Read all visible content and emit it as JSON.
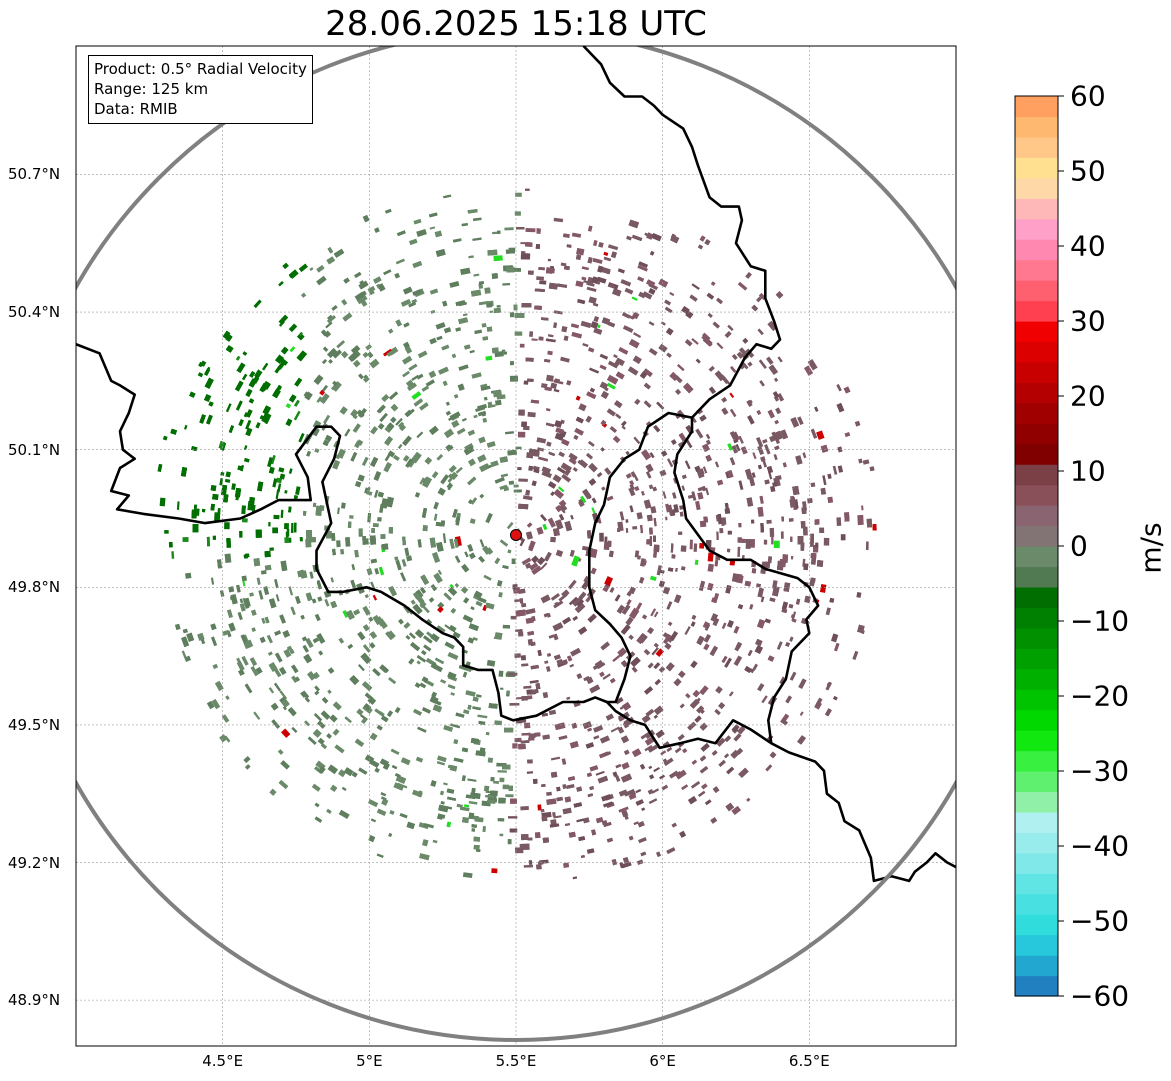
{
  "title": "28.06.2025 15:18 UTC",
  "info": {
    "product": "Product: 0.5° Radial Velocity",
    "range": "Range: 125 km",
    "source": "Data: RMIB"
  },
  "map": {
    "lon_range": [
      4.0,
      7.0
    ],
    "lat_range": [
      48.8,
      50.98
    ],
    "lat_ticks": [
      {
        "value": 50.7,
        "label": "50.7°N"
      },
      {
        "value": 50.4,
        "label": "50.4°N"
      },
      {
        "value": 50.1,
        "label": "50.1°N"
      },
      {
        "value": 49.8,
        "label": "49.8°N"
      },
      {
        "value": 49.5,
        "label": "49.5°N"
      },
      {
        "value": 49.2,
        "label": "49.2°N"
      },
      {
        "value": 48.9,
        "label": "48.9°N"
      }
    ],
    "lon_ticks": [
      {
        "value": 4.5,
        "label": "4.5°E"
      },
      {
        "value": 5.0,
        "label": "5°E"
      },
      {
        "value": 5.5,
        "label": "5.5°E"
      },
      {
        "value": 6.0,
        "label": "6°E"
      },
      {
        "value": 6.5,
        "label": "6.5°E"
      }
    ],
    "radar_site": {
      "lon": 5.5,
      "lat": 49.914
    },
    "range_ring_km": 125,
    "borders": [
      [
        [
          4.0,
          50.33
        ],
        [
          4.08,
          50.31
        ],
        [
          4.12,
          50.25
        ],
        [
          4.15,
          50.24
        ],
        [
          4.2,
          50.22
        ],
        [
          4.18,
          50.18
        ],
        [
          4.15,
          50.14
        ],
        [
          4.16,
          50.1
        ],
        [
          4.2,
          50.08
        ],
        [
          4.15,
          50.06
        ],
        [
          4.12,
          50.01
        ],
        [
          4.18,
          50.0
        ],
        [
          4.14,
          49.97
        ],
        [
          4.23,
          49.96
        ],
        [
          4.35,
          49.95
        ],
        [
          4.44,
          49.94
        ],
        [
          4.56,
          49.95
        ],
        [
          4.63,
          49.97
        ],
        [
          4.69,
          49.99
        ],
        [
          4.8,
          49.99
        ],
        [
          4.79,
          50.04
        ],
        [
          4.75,
          50.09
        ],
        [
          4.82,
          50.15
        ],
        [
          4.87,
          50.15
        ],
        [
          4.9,
          50.13
        ],
        [
          4.88,
          50.08
        ],
        [
          4.84,
          50.03
        ],
        [
          4.87,
          49.94
        ],
        [
          4.82,
          49.88
        ],
        [
          4.82,
          49.84
        ],
        [
          4.86,
          49.79
        ],
        [
          4.91,
          49.79
        ],
        [
          4.99,
          49.8
        ],
        [
          5.04,
          49.79
        ],
        [
          5.12,
          49.76
        ],
        [
          5.18,
          49.73
        ],
        [
          5.25,
          49.7
        ],
        [
          5.29,
          49.69
        ],
        [
          5.32,
          49.67
        ],
        [
          5.32,
          49.63
        ],
        [
          5.37,
          49.62
        ],
        [
          5.42,
          49.62
        ],
        [
          5.44,
          49.57
        ],
        [
          5.45,
          49.52
        ],
        [
          5.49,
          49.51
        ],
        [
          5.57,
          49.52
        ],
        [
          5.66,
          49.55
        ],
        [
          5.73,
          49.55
        ],
        [
          5.77,
          49.56
        ],
        [
          5.81,
          49.55
        ],
        [
          5.84,
          49.53
        ],
        [
          5.89,
          49.51
        ],
        [
          5.94,
          49.5
        ],
        [
          5.99,
          49.45
        ],
        [
          6.06,
          49.46
        ],
        [
          6.12,
          49.47
        ],
        [
          6.18,
          49.46
        ],
        [
          6.24,
          49.51
        ],
        [
          6.3,
          49.49
        ],
        [
          6.37,
          49.46
        ],
        [
          6.43,
          49.44
        ],
        [
          6.52,
          49.42
        ],
        [
          6.55,
          49.4
        ],
        [
          6.56,
          49.35
        ],
        [
          6.6,
          49.33
        ],
        [
          6.62,
          49.29
        ],
        [
          6.67,
          49.27
        ],
        [
          6.71,
          49.21
        ],
        [
          6.72,
          49.16
        ],
        [
          6.78,
          49.17
        ],
        [
          6.84,
          49.16
        ],
        [
          6.86,
          49.18
        ],
        [
          6.9,
          49.2
        ],
        [
          6.93,
          49.22
        ],
        [
          6.97,
          49.2
        ],
        [
          7.0,
          49.19
        ]
      ],
      [
        [
          6.1,
          50.17
        ],
        [
          6.1,
          50.14
        ],
        [
          6.05,
          50.09
        ],
        [
          6.04,
          50.05
        ],
        [
          6.07,
          49.99
        ],
        [
          6.08,
          49.95
        ],
        [
          6.16,
          49.88
        ],
        [
          6.22,
          49.86
        ],
        [
          6.3,
          49.86
        ],
        [
          6.35,
          49.84
        ],
        [
          6.46,
          49.82
        ],
        [
          6.5,
          49.8
        ],
        [
          6.53,
          49.76
        ],
        [
          6.49,
          49.73
        ],
        [
          6.5,
          49.7
        ],
        [
          6.44,
          49.66
        ],
        [
          6.42,
          49.6
        ],
        [
          6.38,
          49.56
        ],
        [
          6.36,
          49.51
        ],
        [
          6.37,
          49.46
        ]
      ],
      [
        [
          6.1,
          50.17
        ],
        [
          6.02,
          50.18
        ],
        [
          5.95,
          50.15
        ],
        [
          5.92,
          50.1
        ],
        [
          5.87,
          50.08
        ],
        [
          5.82,
          50.04
        ],
        [
          5.8,
          49.98
        ],
        [
          5.77,
          49.94
        ],
        [
          5.75,
          49.88
        ],
        [
          5.75,
          49.8
        ],
        [
          5.77,
          49.75
        ],
        [
          5.82,
          49.72
        ],
        [
          5.86,
          49.69
        ],
        [
          5.89,
          49.65
        ],
        [
          5.87,
          49.6
        ],
        [
          5.84,
          49.55
        ],
        [
          5.81,
          49.55
        ]
      ],
      [
        [
          6.1,
          50.17
        ],
        [
          6.16,
          50.21
        ],
        [
          6.23,
          50.24
        ],
        [
          6.28,
          50.3
        ],
        [
          6.32,
          50.33
        ],
        [
          6.37,
          50.32
        ],
        [
          6.4,
          50.34
        ],
        [
          6.38,
          50.38
        ],
        [
          6.35,
          50.43
        ],
        [
          6.35,
          50.49
        ],
        [
          6.3,
          50.5
        ],
        [
          6.25,
          50.55
        ],
        [
          6.27,
          50.6
        ],
        [
          6.26,
          50.63
        ],
        [
          6.2,
          50.63
        ],
        [
          6.16,
          50.65
        ],
        [
          6.12,
          50.72
        ],
        [
          6.1,
          50.76
        ],
        [
          6.07,
          50.8
        ],
        [
          6.0,
          50.83
        ],
        [
          5.97,
          50.85
        ],
        [
          5.93,
          50.87
        ],
        [
          5.87,
          50.87
        ],
        [
          5.82,
          50.9
        ],
        [
          5.79,
          50.94
        ],
        [
          5.73,
          50.98
        ]
      ]
    ]
  },
  "colorbar": {
    "label": "m/s",
    "range": [
      -60,
      60
    ],
    "tick_labels": [
      {
        "value": 60,
        "label": "60"
      },
      {
        "value": 50,
        "label": "50"
      },
      {
        "value": 40,
        "label": "40"
      },
      {
        "value": 30,
        "label": "30"
      },
      {
        "value": 20,
        "label": "20"
      },
      {
        "value": 10,
        "label": "10"
      },
      {
        "value": 0,
        "label": "0"
      },
      {
        "value": -10,
        "label": "−10"
      },
      {
        "value": -20,
        "label": "−20"
      },
      {
        "value": -30,
        "label": "−30"
      },
      {
        "value": -40,
        "label": "−40"
      },
      {
        "value": -50,
        "label": "−50"
      },
      {
        "value": -60,
        "label": "−60"
      }
    ],
    "colors": [
      "#2080c0",
      "#22a8d0",
      "#28c8dc",
      "#30dcdc",
      "#48e0e0",
      "#60e4e4",
      "#80e8e8",
      "#98ecec",
      "#b0f0f0",
      "#90f0a8",
      "#60f070",
      "#38f040",
      "#10e810",
      "#00d800",
      "#00c400",
      "#00b000",
      "#00a000",
      "#009000",
      "#008000",
      "#006e00",
      "#527a52",
      "#6a8a6a",
      "#827474",
      "#8a6470",
      "#8a505a",
      "#7a4046",
      "#800000",
      "#900000",
      "#a00000",
      "#b40000",
      "#c80000",
      "#dc0000",
      "#f00000",
      "#ff4050",
      "#ff6070",
      "#ff7890",
      "#ff88b0",
      "#ffa0c8",
      "#ffb8b8",
      "#ffd8a8",
      "#ffe090",
      "#ffc888",
      "#ffb870",
      "#ffa060"
    ]
  },
  "colors": {
    "approaching_strong": "#006e00",
    "approaching_weak": "#5e7e5e",
    "receding_weak": "#7a5a62",
    "border": "#000000",
    "range_ring": "#808080",
    "radar_site": "#dd1111"
  }
}
